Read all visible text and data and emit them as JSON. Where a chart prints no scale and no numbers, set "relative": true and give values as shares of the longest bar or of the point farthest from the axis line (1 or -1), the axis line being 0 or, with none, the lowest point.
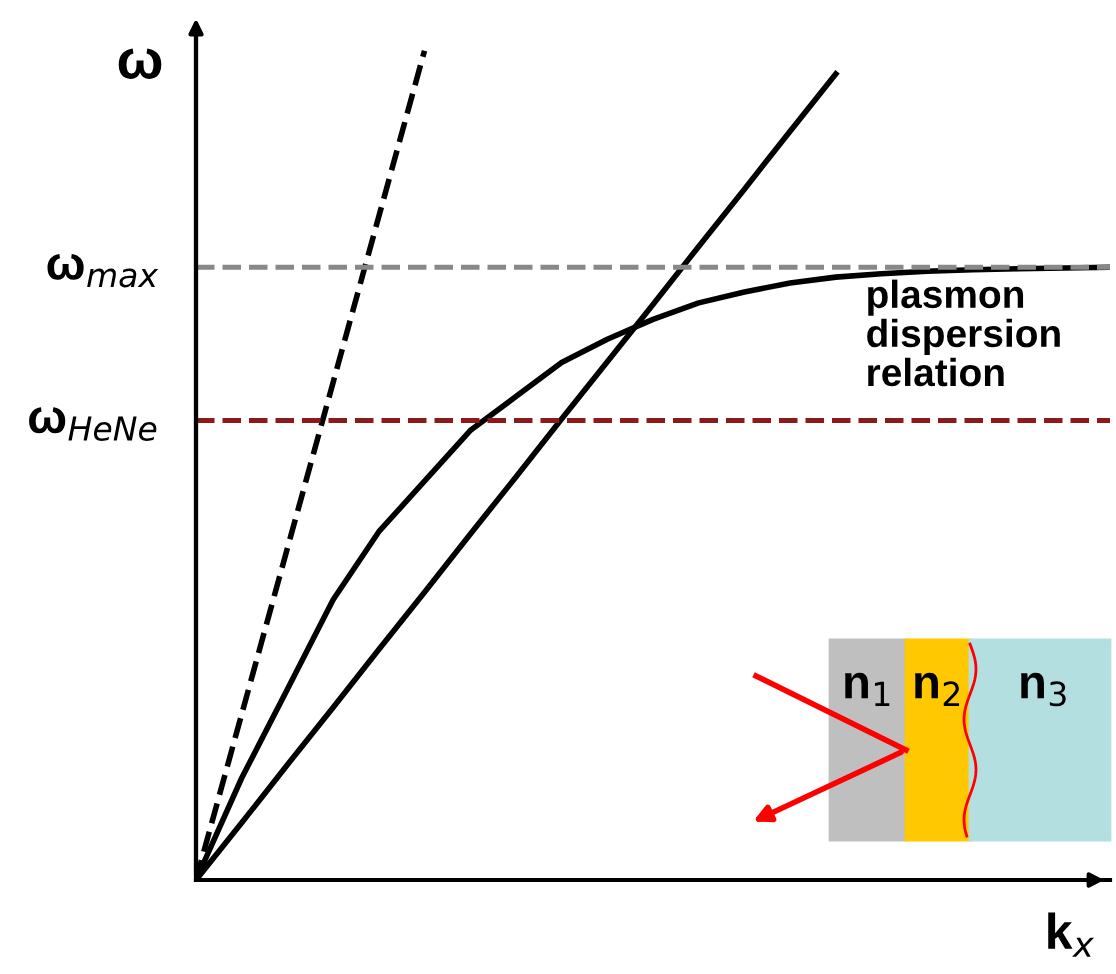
{
  "chart_data": {
    "type": "line",
    "relative": true,
    "xlabel": "k$_{x}$",
    "ylabel": "ω",
    "categories": [
      null,
      null,
      null,
      null,
      null,
      null,
      null,
      null,
      null,
      null,
      null,
      null,
      null,
      null,
      null,
      null,
      null,
      null,
      null,
      null,
      null
    ],
    "series": [
      {
        "color": "#000000",
        "line_style": "dashed",
        "values": [
          0,
          0.2,
          0.4,
          0.6,
          0.8,
          1.0,
          null,
          null,
          null,
          null,
          null,
          null,
          null,
          null,
          null,
          null,
          null,
          null,
          null,
          null,
          null
        ]
      },
      {
        "color": "#000000",
        "line_style": "solid",
        "values": [
          0,
          0.069,
          0.139,
          0.208,
          0.278,
          0.347,
          0.417,
          0.486,
          0.556,
          0.625,
          0.694,
          0.764,
          0.833,
          0.903,
          0.972,
          null,
          null,
          null,
          null,
          null,
          null
        ]
      },
      {
        "name": "plasmon dispersion relation",
        "color": "#000000",
        "line_style": "solid",
        "values": [
          0,
          0.123,
          0.23,
          0.338,
          0.42,
          0.481,
          0.542,
          0.583,
          0.624,
          0.652,
          0.676,
          0.696,
          0.709,
          0.72,
          0.727,
          0.731,
          0.734,
          0.736,
          0.737,
          0.738,
          0.739
        ]
      }
    ],
    "ref_lines": [
      {
        "axis": "y",
        "value": 0.739,
        "label": "ω$_{max}$",
        "color": "#888888",
        "line_style": "dashed"
      },
      {
        "axis": "y",
        "value": 0.554,
        "label": "ω$_{HeNe}$",
        "color": "#8b1a1a",
        "line_style": "dashed"
      }
    ],
    "annotations": [
      "n$_{1}$",
      "n$_{2}$",
      "n$_{3}$"
    ],
    "grid": false
  }
}
